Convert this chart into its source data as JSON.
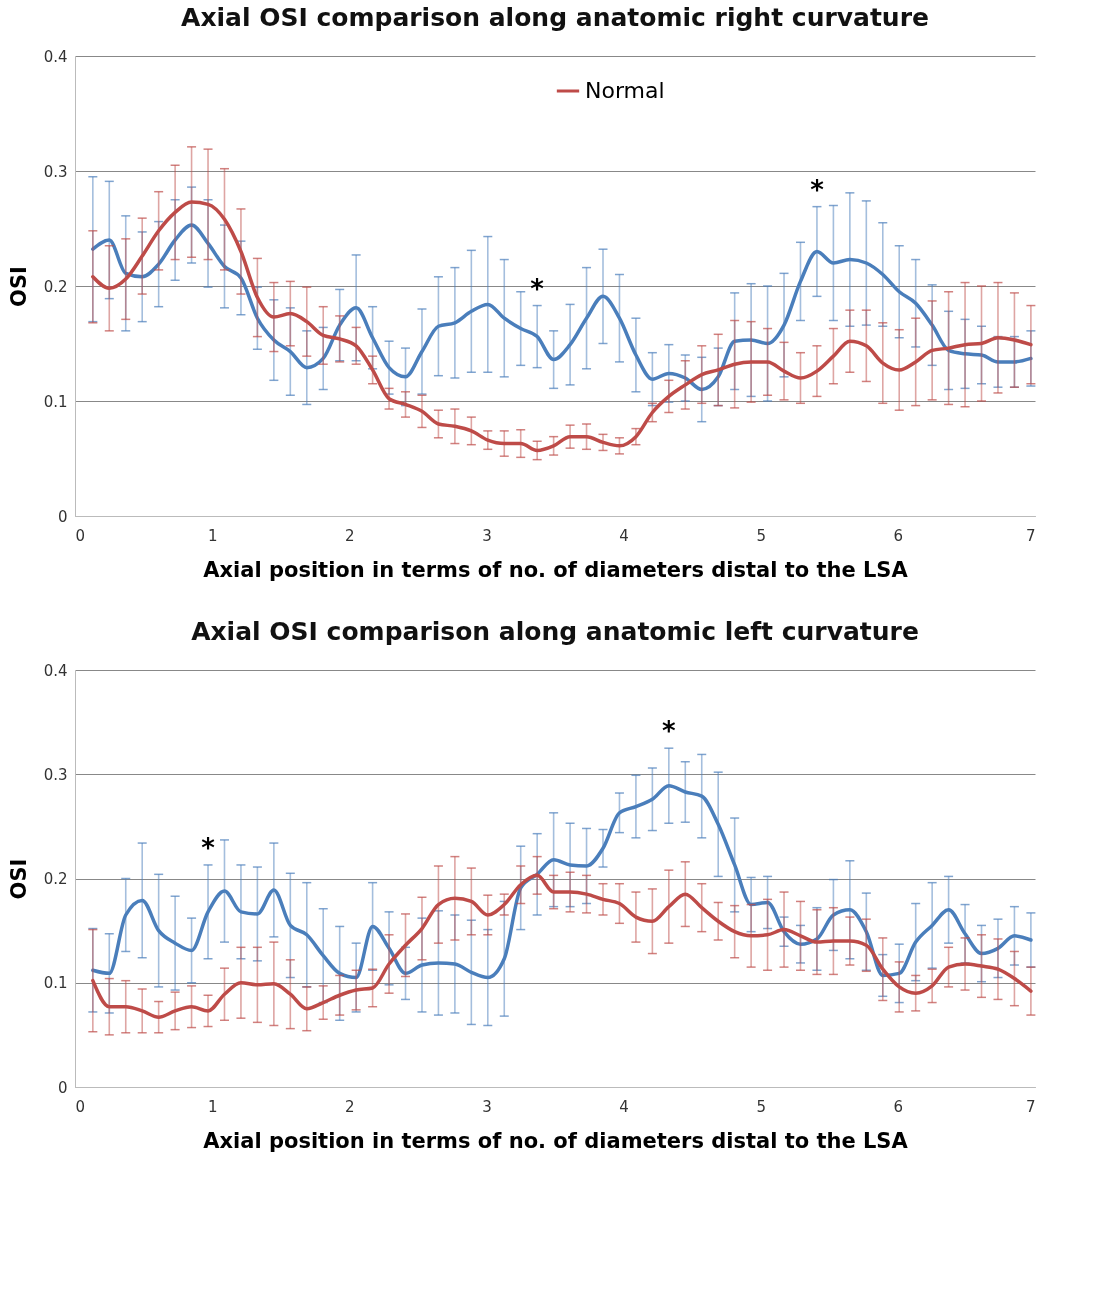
{
  "chart_data": [
    {
      "type": "line",
      "title": "Axial OSI comparison along anatomic right curvature",
      "xlabel": "Axial position in terms of no. of diameters distal to the LSA",
      "ylabel": "OSI",
      "x": [
        0.13,
        0.25,
        0.37,
        0.49,
        0.61,
        0.73,
        0.85,
        0.97,
        1.09,
        1.21,
        1.33,
        1.45,
        1.57,
        1.69,
        1.81,
        1.93,
        2.05,
        2.17,
        2.29,
        2.41,
        2.53,
        2.65,
        2.77,
        2.89,
        3.01,
        3.13,
        3.25,
        3.37,
        3.49,
        3.61,
        3.73,
        3.85,
        3.97,
        4.09,
        4.21,
        4.33,
        4.45,
        4.57,
        4.69,
        4.81,
        4.93,
        5.05,
        5.17,
        5.29,
        5.41,
        5.53,
        5.65,
        5.77,
        5.89,
        6.01,
        6.13,
        6.25,
        6.37,
        6.49,
        6.61,
        6.73,
        6.85,
        6.97
      ],
      "series": [
        {
          "color": "#4a7ebb",
          "values": [
            0.232,
            0.24,
            0.211,
            0.208,
            0.219,
            0.24,
            0.253,
            0.237,
            0.217,
            0.207,
            0.172,
            0.153,
            0.143,
            0.129,
            0.137,
            0.166,
            0.181,
            0.155,
            0.129,
            0.121,
            0.143,
            0.165,
            0.168,
            0.178,
            0.184,
            0.172,
            0.163,
            0.156,
            0.136,
            0.149,
            0.172,
            0.191,
            0.172,
            0.14,
            0.119,
            0.124,
            0.12,
            0.11,
            0.121,
            0.152,
            0.153,
            0.15,
            0.166,
            0.204,
            0.23,
            0.22,
            0.223,
            0.22,
            0.21,
            0.195,
            0.185,
            0.166,
            0.144,
            0.141,
            0.14,
            0.134,
            0.134,
            0.137
          ],
          "errors": [
            0.063,
            0.051,
            0.05,
            0.039,
            0.037,
            0.035,
            0.033,
            0.038,
            0.036,
            0.032,
            0.027,
            0.035,
            0.038,
            0.032,
            0.027,
            0.031,
            0.046,
            0.027,
            0.023,
            0.025,
            0.037,
            0.043,
            0.048,
            0.053,
            0.059,
            0.051,
            0.032,
            0.027,
            0.025,
            0.035,
            0.044,
            0.041,
            0.038,
            0.032,
            0.023,
            0.025,
            0.02,
            0.028,
            0.025,
            0.042,
            0.049,
            0.05,
            0.045,
            0.034,
            0.039,
            0.05,
            0.058,
            0.054,
            0.045,
            0.04,
            0.038,
            0.035,
            0.034,
            0.03,
            0.025,
            0.022,
            0.022,
            0.024
          ]
        },
        {
          "name": "Normal",
          "color": "#be4b48",
          "values": [
            0.208,
            0.198,
            0.206,
            0.226,
            0.248,
            0.264,
            0.273,
            0.271,
            0.258,
            0.23,
            0.19,
            0.173,
            0.176,
            0.169,
            0.157,
            0.154,
            0.148,
            0.127,
            0.102,
            0.097,
            0.091,
            0.08,
            0.078,
            0.074,
            0.066,
            0.063,
            0.063,
            0.057,
            0.061,
            0.069,
            0.069,
            0.064,
            0.061,
            0.069,
            0.09,
            0.104,
            0.114,
            0.123,
            0.127,
            0.132,
            0.134,
            0.134,
            0.126,
            0.12,
            0.126,
            0.139,
            0.152,
            0.148,
            0.133,
            0.127,
            0.134,
            0.144,
            0.146,
            0.149,
            0.15,
            0.155,
            0.153,
            0.149
          ],
          "errors": [
            0.04,
            0.037,
            0.035,
            0.033,
            0.034,
            0.041,
            0.048,
            0.048,
            0.044,
            0.037,
            0.034,
            0.03,
            0.028,
            0.03,
            0.025,
            0.02,
            0.016,
            0.012,
            0.009,
            0.011,
            0.014,
            0.012,
            0.015,
            0.012,
            0.008,
            0.011,
            0.012,
            0.008,
            0.008,
            0.01,
            0.011,
            0.007,
            0.007,
            0.007,
            0.008,
            0.014,
            0.021,
            0.025,
            0.031,
            0.038,
            0.035,
            0.029,
            0.025,
            0.022,
            0.022,
            0.024,
            0.027,
            0.031,
            0.035,
            0.035,
            0.038,
            0.043,
            0.049,
            0.054,
            0.05,
            0.048,
            0.041,
            0.034
          ]
        }
      ],
      "xlim": [
        0,
        7
      ],
      "xticks": [
        0,
        1,
        2,
        3,
        4,
        5,
        6,
        7
      ],
      "ylim": [
        0,
        0.4
      ],
      "yticks": [
        0,
        0.1,
        0.2,
        0.3,
        0.4
      ],
      "grid": "y",
      "legend": "top",
      "annotations": [
        {
          "text": "*",
          "x": 3.37,
          "y": 0.183
        },
        {
          "text": "*",
          "x": 5.41,
          "y": 0.269
        }
      ]
    },
    {
      "type": "line",
      "title": "Axial OSI comparison along anatomic left curvature",
      "xlabel": "Axial position in terms of no. of diameters distal to the LSA",
      "ylabel": "OSI",
      "x": [
        0.13,
        0.25,
        0.37,
        0.49,
        0.61,
        0.73,
        0.85,
        0.97,
        1.09,
        1.21,
        1.33,
        1.45,
        1.57,
        1.69,
        1.81,
        1.93,
        2.05,
        2.17,
        2.29,
        2.41,
        2.53,
        2.65,
        2.77,
        2.89,
        3.01,
        3.13,
        3.25,
        3.37,
        3.49,
        3.61,
        3.73,
        3.85,
        3.97,
        4.09,
        4.21,
        4.33,
        4.45,
        4.57,
        4.69,
        4.81,
        4.93,
        5.05,
        5.17,
        5.29,
        5.41,
        5.53,
        5.65,
        5.77,
        5.89,
        6.01,
        6.13,
        6.25,
        6.37,
        6.49,
        6.61,
        6.73,
        6.85,
        6.97
      ],
      "series": [
        {
          "color": "#4a7ebb",
          "values": [
            0.112,
            0.109,
            0.165,
            0.179,
            0.15,
            0.138,
            0.131,
            0.168,
            0.188,
            0.168,
            0.166,
            0.189,
            0.155,
            0.146,
            0.126,
            0.109,
            0.105,
            0.154,
            0.133,
            0.109,
            0.117,
            0.119,
            0.118,
            0.11,
            0.105,
            0.123,
            0.191,
            0.204,
            0.218,
            0.213,
            0.212,
            0.229,
            0.263,
            0.269,
            0.276,
            0.289,
            0.283,
            0.279,
            0.252,
            0.213,
            0.175,
            0.177,
            0.149,
            0.137,
            0.142,
            0.165,
            0.17,
            0.149,
            0.107,
            0.109,
            0.139,
            0.155,
            0.17,
            0.147,
            0.128,
            0.133,
            0.145,
            0.141
          ],
          "errors": [
            0.04,
            0.038,
            0.035,
            0.055,
            0.054,
            0.045,
            0.031,
            0.045,
            0.049,
            0.045,
            0.045,
            0.045,
            0.05,
            0.05,
            0.045,
            0.045,
            0.033,
            0.042,
            0.035,
            0.025,
            0.045,
            0.05,
            0.047,
            0.05,
            0.046,
            0.055,
            0.04,
            0.039,
            0.045,
            0.04,
            0.036,
            0.018,
            0.019,
            0.03,
            0.03,
            0.036,
            0.029,
            0.04,
            0.05,
            0.045,
            0.026,
            0.025,
            0.014,
            0.018,
            0.03,
            0.034,
            0.047,
            0.037,
            0.02,
            0.028,
            0.037,
            0.041,
            0.032,
            0.028,
            0.027,
            0.028,
            0.028,
            0.026
          ]
        },
        {
          "name": "Normal",
          "color": "#be4b48",
          "values": [
            0.102,
            0.077,
            0.077,
            0.073,
            0.067,
            0.073,
            0.077,
            0.073,
            0.089,
            0.1,
            0.098,
            0.099,
            0.089,
            0.075,
            0.081,
            0.088,
            0.093,
            0.095,
            0.118,
            0.136,
            0.152,
            0.175,
            0.181,
            0.178,
            0.165,
            0.175,
            0.194,
            0.203,
            0.187,
            0.187,
            0.185,
            0.18,
            0.176,
            0.163,
            0.159,
            0.173,
            0.185,
            0.172,
            0.159,
            0.149,
            0.145,
            0.146,
            0.151,
            0.145,
            0.139,
            0.14,
            0.14,
            0.136,
            0.113,
            0.096,
            0.09,
            0.097,
            0.115,
            0.118,
            0.116,
            0.113,
            0.104,
            0.092
          ],
          "errors": [
            0.049,
            0.027,
            0.025,
            0.021,
            0.015,
            0.018,
            0.02,
            0.015,
            0.025,
            0.034,
            0.036,
            0.04,
            0.033,
            0.021,
            0.016,
            0.019,
            0.019,
            0.018,
            0.028,
            0.03,
            0.03,
            0.037,
            0.04,
            0.032,
            0.019,
            0.01,
            0.018,
            0.018,
            0.016,
            0.019,
            0.018,
            0.015,
            0.019,
            0.024,
            0.031,
            0.035,
            0.031,
            0.023,
            0.018,
            0.025,
            0.03,
            0.034,
            0.036,
            0.033,
            0.031,
            0.032,
            0.023,
            0.025,
            0.03,
            0.024,
            0.017,
            0.016,
            0.019,
            0.025,
            0.03,
            0.029,
            0.026,
            0.023
          ]
        }
      ],
      "xlim": [
        0,
        7
      ],
      "xticks": [
        0,
        1,
        2,
        3,
        4,
        5,
        6,
        7
      ],
      "ylim": [
        0,
        0.4
      ],
      "yticks": [
        0,
        0.1,
        0.2,
        0.3,
        0.4
      ],
      "grid": "y",
      "annotations": [
        {
          "text": "*",
          "x": 4.33,
          "y": 0.325
        },
        {
          "text": "*",
          "x": 0.97,
          "y": 0.213
        }
      ]
    }
  ]
}
